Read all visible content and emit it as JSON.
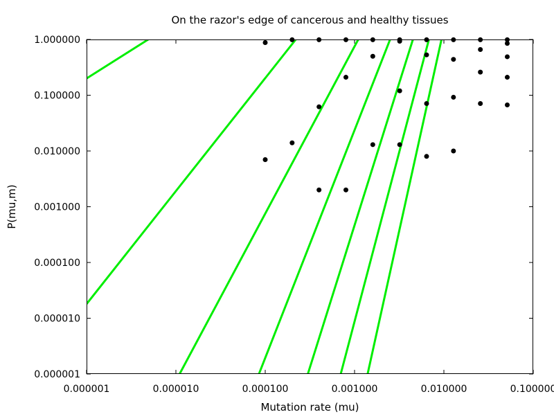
{
  "chart_data": {
    "type": "scatter",
    "title": "On the razor's edge of cancerous and healthy tissues",
    "xlabel": "Mutation rate (mu)",
    "ylabel": "P(mu,m)",
    "xscale": "log",
    "yscale": "log",
    "xlim": [
      1e-06,
      0.1
    ],
    "ylim": [
      1e-06,
      1.0
    ],
    "grid": false,
    "legend": "none",
    "x_ticks": [
      {
        "value": 1e-06,
        "label": "0.000001"
      },
      {
        "value": 1e-05,
        "label": "0.000010"
      },
      {
        "value": 0.0001,
        "label": "0.000100"
      },
      {
        "value": 0.001,
        "label": "0.001000"
      },
      {
        "value": 0.01,
        "label": "0.010000"
      },
      {
        "value": 0.1,
        "label": "0.100000"
      }
    ],
    "y_ticks": [
      {
        "value": 1e-06,
        "label": "0.000001"
      },
      {
        "value": 1e-05,
        "label": "0.000010"
      },
      {
        "value": 0.0001,
        "label": "0.000100"
      },
      {
        "value": 0.001,
        "label": "0.001000"
      },
      {
        "value": 0.01,
        "label": "0.010000"
      },
      {
        "value": 0.1,
        "label": "0.100000"
      },
      {
        "value": 1.0,
        "label": "1.000000"
      }
    ],
    "series": [
      {
        "kind": "points",
        "color": "#000000",
        "points": [
          [
            0.0001,
            0.88
          ],
          [
            0.0001,
            0.007
          ],
          [
            0.0002,
            0.99
          ],
          [
            0.0002,
            0.014
          ],
          [
            0.0004,
            0.99
          ],
          [
            0.0004,
            0.062
          ],
          [
            0.0004,
            0.002
          ],
          [
            0.0008,
            0.99
          ],
          [
            0.0008,
            0.21
          ],
          [
            0.0008,
            0.002
          ],
          [
            0.0016,
            0.99
          ],
          [
            0.0016,
            0.5
          ],
          [
            0.0016,
            0.013
          ],
          [
            0.0032,
            0.99
          ],
          [
            0.0032,
            0.93
          ],
          [
            0.0032,
            0.12
          ],
          [
            0.0032,
            0.013
          ],
          [
            0.0064,
            0.99
          ],
          [
            0.0064,
            0.53
          ],
          [
            0.0064,
            0.071
          ],
          [
            0.0064,
            0.008
          ],
          [
            0.0128,
            0.99
          ],
          [
            0.0128,
            0.44
          ],
          [
            0.0128,
            0.092
          ],
          [
            0.0128,
            0.01
          ],
          [
            0.0256,
            0.99
          ],
          [
            0.0256,
            0.66
          ],
          [
            0.0256,
            0.26
          ],
          [
            0.0256,
            0.071
          ],
          [
            0.0512,
            0.99
          ],
          [
            0.0512,
            0.85
          ],
          [
            0.0512,
            0.49
          ],
          [
            0.0512,
            0.21
          ],
          [
            0.0512,
            0.067
          ]
        ]
      },
      {
        "kind": "lines",
        "color": "#00ee00",
        "lines": [
          {
            "x": [
              1e-06,
              4.9e-06
            ],
            "y": [
              0.2,
              1.0
            ]
          },
          {
            "x": [
              1e-06,
              0.00022
            ],
            "y": [
              1.8e-05,
              1.0
            ]
          },
          {
            "x": [
              1.1e-05,
              0.0011
            ],
            "y": [
              1e-06,
              1.0
            ]
          },
          {
            "x": [
              8.5e-05,
              0.0025
            ],
            "y": [
              1e-06,
              1.0
            ]
          },
          {
            "x": [
              0.0003,
              0.0045
            ],
            "y": [
              1e-06,
              1.0
            ]
          },
          {
            "x": [
              0.0007,
              0.0068
            ],
            "y": [
              1e-06,
              1.0
            ]
          },
          {
            "x": [
              0.0014,
              0.0094
            ],
            "y": [
              1e-06,
              1.0
            ]
          }
        ]
      }
    ]
  }
}
